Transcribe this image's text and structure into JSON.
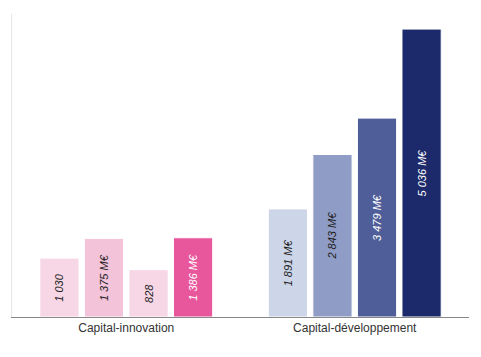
{
  "chart_data": {
    "type": "bar",
    "categories": [
      "Capital-innovation",
      "Capital-développement"
    ],
    "series": [
      {
        "colors": [
          "#f7d6e6",
          "#cdd5e8"
        ],
        "values": [
          1030,
          1891
        ],
        "value_labels": [
          "1 030",
          "1 891 M€"
        ]
      },
      {
        "colors": [
          "#f3c3da",
          "#8f9cc5"
        ],
        "values": [
          1375,
          2843
        ],
        "value_labels": [
          "1 375 M€",
          "2 843 M€"
        ]
      },
      {
        "colors": [
          "#f7d6e6",
          "#4f5e98"
        ],
        "values": [
          828,
          3479
        ],
        "value_labels": [
          "828",
          "3 479 M€"
        ]
      },
      {
        "colors": [
          "#e8569c",
          "#1c2a6b"
        ],
        "values": [
          1386,
          5036
        ],
        "value_labels": [
          "1 386 M€",
          "5 036 M€"
        ]
      }
    ],
    "ylim": [
      0,
      5300
    ],
    "data_labels": true,
    "tick_labels": "x",
    "grid": false
  }
}
